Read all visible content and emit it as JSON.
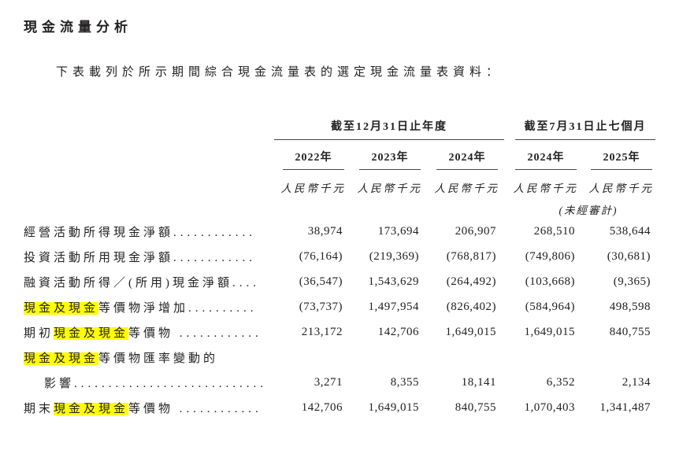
{
  "page": {
    "title": "現金流量分析",
    "intro": "下表載列於所示期間綜合現金流量表的選定現金流量表資料："
  },
  "table": {
    "highlight_color": "#ffff00",
    "col_groups": [
      {
        "label": "截至12月31日止年度",
        "span": 3
      },
      {
        "label": "截至7月31日止七個月",
        "span": 2
      }
    ],
    "year_headers": [
      "2022年",
      "2023年",
      "2024年",
      "2024年",
      "2025年"
    ],
    "unit_label": "人民幣千元",
    "unaudited_note": "(未經審計)",
    "rows": [
      {
        "segments": [
          {
            "text": "經營活動所得現金淨額",
            "highlight": false
          }
        ],
        "leader": "............",
        "values": [
          "38,974",
          "173,694",
          "206,907",
          "268,510",
          "538,644"
        ]
      },
      {
        "segments": [
          {
            "text": "投資活動所用現金淨額",
            "highlight": false
          }
        ],
        "leader": "............",
        "values": [
          "(76,164)",
          "(219,369)",
          "(768,817)",
          "(749,806)",
          "(30,681)"
        ]
      },
      {
        "segments": [
          {
            "text": "融資活動所得／(所用)現金淨額",
            "highlight": false
          }
        ],
        "leader": "....",
        "values": [
          "(36,547)",
          "1,543,629",
          "(264,492)",
          "(103,668)",
          "(9,365)"
        ]
      },
      {
        "segments": [
          {
            "text": "現金及現金",
            "highlight": true
          },
          {
            "text": "等價物淨增加",
            "highlight": false
          }
        ],
        "leader": "..........",
        "values": [
          "(73,737)",
          "1,497,954",
          "(826,402)",
          "(584,964)",
          "498,598"
        ]
      },
      {
        "segments": [
          {
            "text": "期初",
            "highlight": false
          },
          {
            "text": "現金及現金",
            "highlight": true
          },
          {
            "text": "等價物 ",
            "highlight": false
          }
        ],
        "leader": "............",
        "values": [
          "213,172",
          "142,706",
          "1,649,015",
          "1,649,015",
          "840,755"
        ]
      },
      {
        "segments": [
          {
            "text": "現金及現金",
            "highlight": true
          },
          {
            "text": "等價物匯率變動的",
            "highlight": false
          }
        ],
        "leader": "",
        "values": [
          "",
          "",
          "",
          "",
          ""
        ]
      },
      {
        "indent": true,
        "segments": [
          {
            "text": "影響",
            "highlight": false
          }
        ],
        "leader": "............................",
        "values": [
          "3,271",
          "8,355",
          "18,141",
          "6,352",
          "2,134"
        ]
      },
      {
        "segments": [
          {
            "text": "期末",
            "highlight": false
          },
          {
            "text": "現金及現金",
            "highlight": true
          },
          {
            "text": "等價物 ",
            "highlight": false
          }
        ],
        "leader": "............",
        "values": [
          "142,706",
          "1,649,015",
          "840,755",
          "1,070,403",
          "1,341,487"
        ]
      }
    ]
  }
}
